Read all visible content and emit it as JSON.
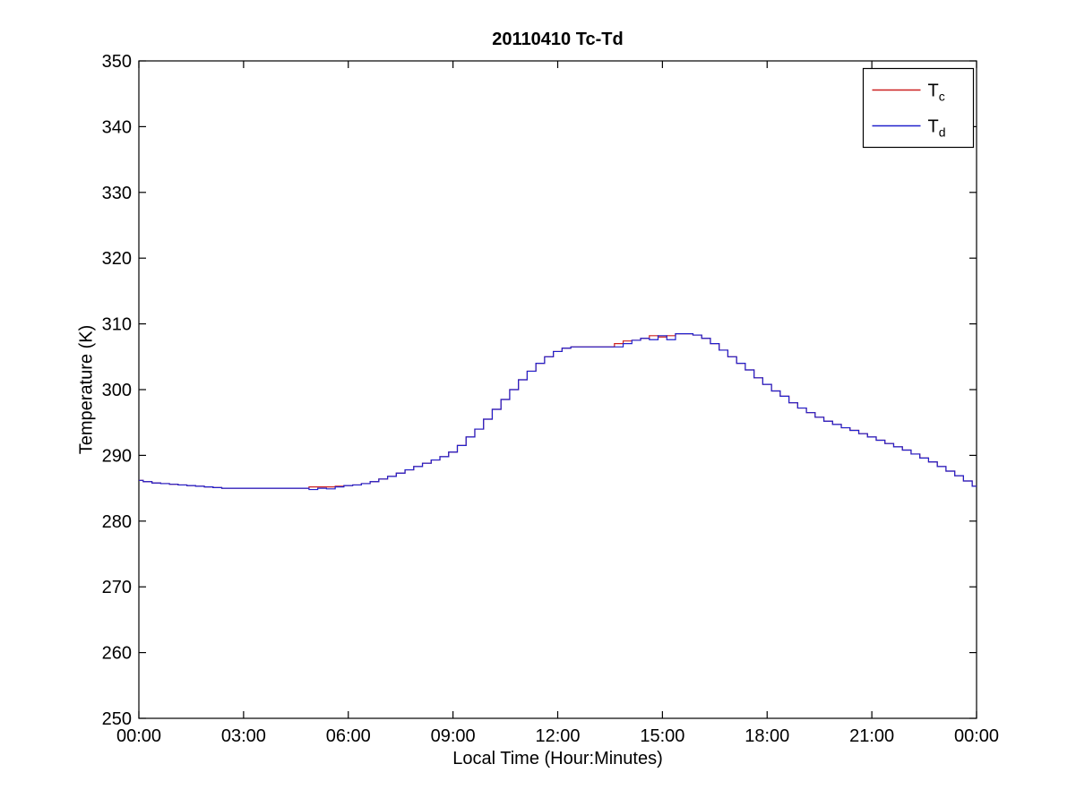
{
  "figure": {
    "title": "20110410 Tc-Td",
    "xlabel": "Local Time (Hour:Minutes)",
    "ylabel": "Temperature (K)"
  },
  "chart_data": {
    "type": "line",
    "title": "20110410 Tc-Td",
    "xlabel": "Local Time (Hour:Minutes)",
    "ylabel": "Temperature (K)",
    "xlim_hours": [
      0,
      24
    ],
    "ylim": [
      250,
      350
    ],
    "grid": false,
    "line_style": "steps-mid",
    "x_tick_hours": [
      0,
      3,
      6,
      9,
      12,
      15,
      18,
      21,
      24
    ],
    "x_tick_labels": [
      "00:00",
      "03:00",
      "06:00",
      "09:00",
      "12:00",
      "15:00",
      "18:00",
      "21:00",
      "00:00"
    ],
    "y_ticks": [
      250,
      260,
      270,
      280,
      290,
      300,
      310,
      320,
      330,
      340,
      350
    ],
    "legend": {
      "position": "top-right",
      "entries": [
        {
          "label": "T",
          "sub": "c",
          "color": "#cc2020"
        },
        {
          "label": "T",
          "sub": "d",
          "color": "#2020cc"
        }
      ]
    },
    "x_hours": [
      0,
      0.25,
      0.5,
      0.75,
      1,
      1.25,
      1.5,
      1.75,
      2,
      2.25,
      2.5,
      2.75,
      3,
      3.25,
      3.5,
      3.75,
      4,
      4.25,
      4.5,
      4.75,
      5,
      5.25,
      5.5,
      5.75,
      6,
      6.25,
      6.5,
      6.75,
      7,
      7.25,
      7.5,
      7.75,
      8,
      8.25,
      8.5,
      8.75,
      9,
      9.25,
      9.5,
      9.75,
      10,
      10.25,
      10.5,
      10.75,
      11,
      11.25,
      11.5,
      11.75,
      12,
      12.25,
      12.5,
      12.75,
      13,
      13.25,
      13.5,
      13.75,
      14,
      14.25,
      14.5,
      14.75,
      15,
      15.25,
      15.5,
      15.75,
      16,
      16.25,
      16.5,
      16.75,
      17,
      17.25,
      17.5,
      17.75,
      18,
      18.25,
      18.5,
      18.75,
      19,
      19.25,
      19.5,
      19.75,
      20,
      20.25,
      20.5,
      20.75,
      21,
      21.25,
      21.5,
      21.75,
      22,
      22.25,
      22.5,
      22.75,
      23,
      23.25,
      23.5,
      23.75,
      24
    ],
    "series": [
      {
        "name": "Tc",
        "color": "#cc2020",
        "values": [
          286.2,
          286.0,
          285.8,
          285.7,
          285.6,
          285.5,
          285.4,
          285.3,
          285.2,
          285.1,
          285.0,
          285.0,
          285.0,
          285.0,
          285.0,
          285.0,
          285.0,
          285.0,
          285.0,
          285.0,
          285.2,
          285.2,
          285.2,
          285.3,
          285.4,
          285.5,
          285.7,
          286.0,
          286.4,
          286.8,
          287.3,
          287.8,
          288.3,
          288.8,
          289.3,
          289.8,
          290.5,
          291.5,
          292.8,
          294.0,
          295.5,
          297.0,
          298.5,
          300.0,
          301.5,
          302.8,
          304.0,
          305.0,
          305.8,
          306.3,
          306.5,
          306.5,
          306.5,
          306.5,
          306.5,
          307.0,
          307.4,
          307.5,
          307.8,
          308.2,
          308.0,
          308.2,
          308.5,
          308.5,
          308.3,
          307.8,
          307.0,
          306.0,
          305.0,
          304.0,
          303.0,
          301.8,
          300.8,
          299.8,
          299.0,
          298.0,
          297.2,
          296.5,
          295.8,
          295.2,
          294.7,
          294.2,
          293.8,
          293.3,
          292.8,
          292.3,
          291.8,
          291.3,
          290.8,
          290.2,
          289.6,
          289.0,
          288.3,
          287.6,
          286.9,
          286.1,
          285.3
        ]
      },
      {
        "name": "Td",
        "color": "#2020cc",
        "values": [
          286.2,
          286.0,
          285.8,
          285.7,
          285.6,
          285.5,
          285.4,
          285.3,
          285.2,
          285.1,
          285.0,
          285.0,
          285.0,
          285.0,
          285.0,
          285.0,
          285.0,
          285.0,
          285.0,
          285.0,
          284.8,
          285.0,
          284.9,
          285.2,
          285.4,
          285.5,
          285.7,
          286.0,
          286.4,
          286.8,
          287.3,
          287.8,
          288.3,
          288.8,
          289.3,
          289.8,
          290.5,
          291.5,
          292.8,
          294.0,
          295.5,
          297.0,
          298.5,
          300.0,
          301.5,
          302.8,
          304.0,
          305.0,
          305.8,
          306.3,
          306.5,
          306.5,
          306.5,
          306.5,
          306.5,
          306.5,
          307.0,
          307.5,
          307.8,
          307.6,
          308.2,
          307.6,
          308.5,
          308.5,
          308.3,
          307.8,
          307.0,
          306.0,
          305.0,
          304.0,
          303.0,
          301.8,
          300.8,
          299.8,
          299.0,
          298.0,
          297.2,
          296.5,
          295.8,
          295.2,
          294.7,
          294.2,
          293.8,
          293.3,
          292.8,
          292.3,
          291.8,
          291.3,
          290.8,
          290.2,
          289.6,
          289.0,
          288.3,
          287.6,
          286.9,
          286.1,
          285.3
        ]
      }
    ]
  }
}
